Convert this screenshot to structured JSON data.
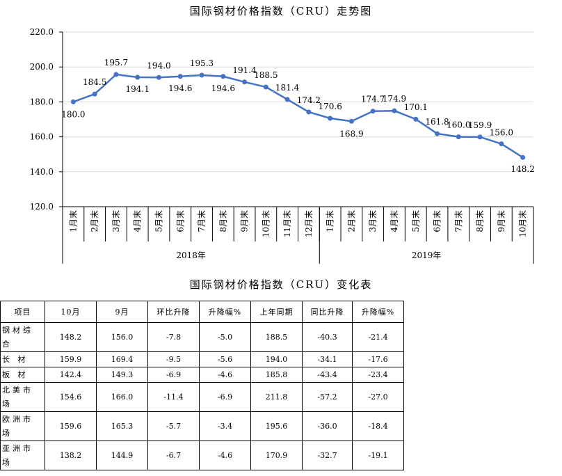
{
  "chart_data": {
    "type": "line",
    "title": "国际钢材价格指数（CRU）走势图",
    "categories": [
      "1月末",
      "2月末",
      "3月末",
      "4月末",
      "5月末",
      "6月末",
      "7月末",
      "8月末",
      "9月末",
      "10月末",
      "11月末",
      "12月末",
      "1月末",
      "2月末",
      "3月末",
      "4月末",
      "5月末",
      "6月末",
      "7月末",
      "8月末",
      "9月末",
      "10月末"
    ],
    "groups": [
      {
        "label": "2018年",
        "count": 12
      },
      {
        "label": "2019年",
        "count": 10
      }
    ],
    "values": [
      180.0,
      184.5,
      195.7,
      194.1,
      194.0,
      194.6,
      195.3,
      194.6,
      191.4,
      188.5,
      181.4,
      174.2,
      170.6,
      168.9,
      174.7,
      174.9,
      170.1,
      161.8,
      160.0,
      159.9,
      156.0,
      148.2
    ],
    "value_labels": [
      "180.0",
      "184.5",
      "195.7",
      "194.1",
      "194.0",
      "194.6",
      "195.3",
      "194.6",
      "191.4",
      "188.5",
      "181.4",
      "174.2",
      "170.6",
      "168.9",
      "174.7",
      "174.9",
      "170.1",
      "161.8",
      "160.0",
      "159.9",
      "156.0",
      "148.2"
    ],
    "yticks": [
      "120.0",
      "140.0",
      "160.0",
      "180.0",
      "200.0",
      "220.0"
    ],
    "ylim": [
      120,
      220
    ],
    "grid": true,
    "series_color": "#4472C4"
  },
  "table": {
    "title": "国际钢材价格指数（CRU）变化表",
    "headers": [
      "项目",
      "10月",
      "9月",
      "环比升降",
      "升降幅%",
      "上年同期",
      "同比升降",
      "升降幅%"
    ],
    "rows": [
      {
        "name": "钢材综合",
        "cells": [
          "148.2",
          "156.0",
          "-7.8",
          "-5.0",
          "188.5",
          "-40.3",
          "-21.4"
        ]
      },
      {
        "name": "长 材",
        "cells": [
          "159.9",
          "169.4",
          "-9.5",
          "-5.6",
          "194.0",
          "-34.1",
          "-17.6"
        ]
      },
      {
        "name": "板 材",
        "cells": [
          "142.4",
          "149.3",
          "-6.9",
          "-4.6",
          "185.8",
          "-43.4",
          "-23.4"
        ]
      },
      {
        "name": "北美市场",
        "cells": [
          "154.6",
          "166.0",
          "-11.4",
          "-6.9",
          "211.8",
          "-57.2",
          "-27.0"
        ]
      },
      {
        "name": "欧洲市场",
        "cells": [
          "159.6",
          "165.3",
          "-5.7",
          "-3.4",
          "195.6",
          "-36.0",
          "-18.4"
        ]
      },
      {
        "name": "亚洲市场",
        "cells": [
          "138.2",
          "144.9",
          "-6.7",
          "-4.6",
          "170.9",
          "-32.7",
          "-19.1"
        ]
      }
    ]
  }
}
